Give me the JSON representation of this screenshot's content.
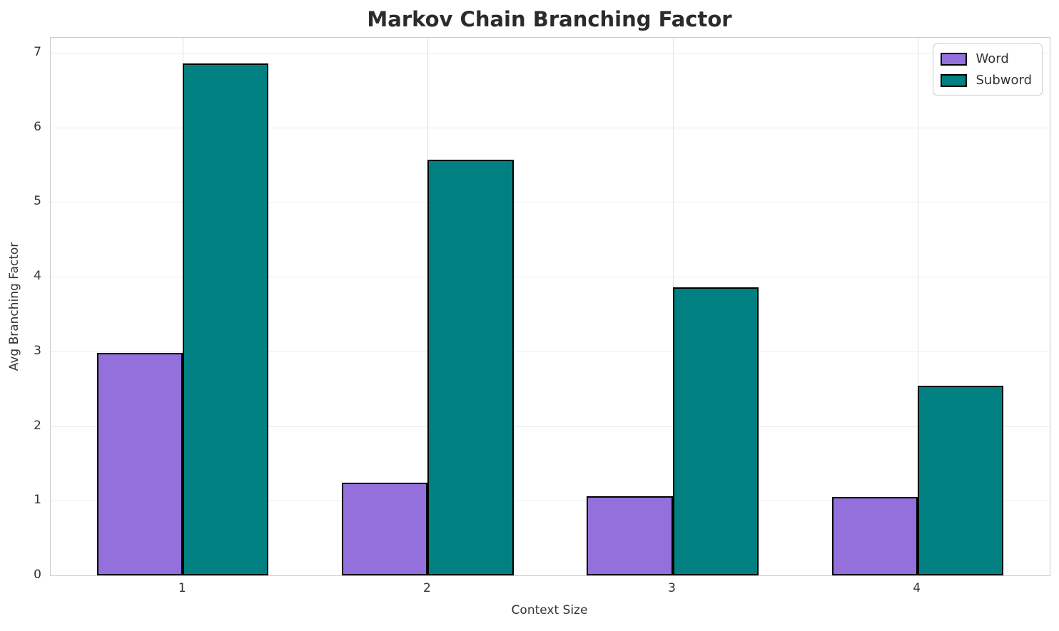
{
  "chart_data": {
    "type": "bar",
    "title": "Markov Chain Branching Factor",
    "xlabel": "Context Size",
    "ylabel": "Avg Branching Factor",
    "categories": [
      "1",
      "2",
      "3",
      "4"
    ],
    "series": [
      {
        "name": "Word",
        "color": "#9370DB",
        "values": [
          2.98,
          1.24,
          1.06,
          1.05
        ]
      },
      {
        "name": "Subword",
        "color": "#008080",
        "values": [
          6.86,
          5.57,
          3.86,
          2.54
        ]
      }
    ],
    "yticks": [
      "0",
      "1",
      "2",
      "3",
      "4",
      "5",
      "6",
      "7"
    ],
    "ylim": [
      0,
      7.2
    ],
    "bar_width_ratio": 0.35,
    "x_margin": 0.54,
    "bar_edge_color": "#000000",
    "grid": true,
    "legend_position": "upper right",
    "background_color": "#ffffff",
    "grid_color": "#ececec",
    "spine_color": "#cccccc",
    "text_color": "#333333",
    "title_color": "#2b2b2b"
  }
}
